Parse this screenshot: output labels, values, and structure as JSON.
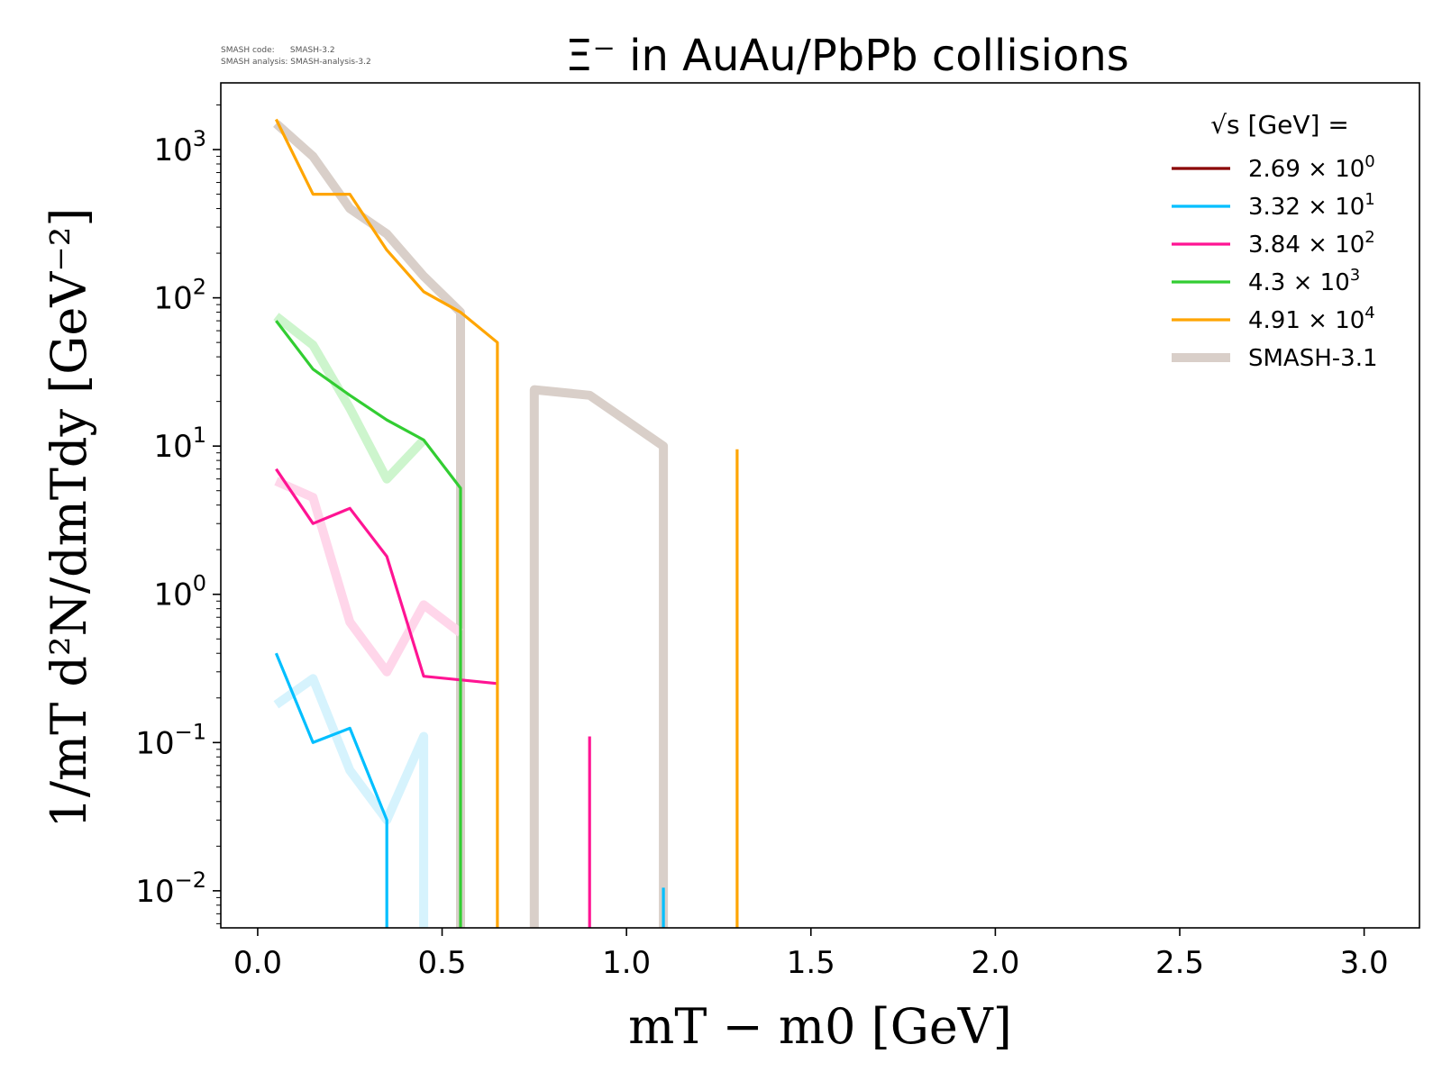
{
  "meta": {
    "code_label": "SMASH code:      SMASH-3.2",
    "analysis_label": "SMASH analysis: SMASH-analysis-3.2"
  },
  "chart_data": {
    "type": "line",
    "title": "Ξ⁻ in AuAu/PbPb collisions",
    "xlabel": "mT − m0 [GeV]",
    "ylabel": "1/mT d²N/dmTdy [GeV⁻²]",
    "xlim": [
      -0.1,
      3.15
    ],
    "ylim_log10": [
      -2.25,
      3.45
    ],
    "yscale": "log",
    "x_ticks": [
      "0.0",
      "0.5",
      "1.0",
      "1.5",
      "2.0",
      "2.5",
      "3.0"
    ],
    "y_ticks": [
      {
        "base": "10",
        "exp": "3"
      },
      {
        "base": "10",
        "exp": "2"
      },
      {
        "base": "10",
        "exp": "1"
      },
      {
        "base": "10",
        "exp": "0"
      },
      {
        "base": "10",
        "exp": "−1"
      },
      {
        "base": "10",
        "exp": "−2"
      }
    ],
    "grid": false,
    "legend": {
      "placement": "top-right",
      "title": "√s  [GeV] =",
      "entries": [
        {
          "mantissa": "2.69",
          "exp": "0",
          "color": "#8b0000"
        },
        {
          "mantissa": "3.32",
          "exp": "1",
          "color": "#00bfff"
        },
        {
          "mantissa": "3.84",
          "exp": "2",
          "color": "#ff1493"
        },
        {
          "mantissa": "4.3",
          "exp": "3",
          "color": "#32cd32"
        },
        {
          "mantissa": "4.91",
          "exp": "4",
          "color": "#ffa500"
        }
      ],
      "reference_label": "SMASH-3.1",
      "reference_color": "#d9cfc9"
    },
    "series": [
      {
        "name": "3.32 × 10^1",
        "color": "#00bfff",
        "reference": false,
        "x": [
          0.05,
          0.15,
          0.25,
          0.35,
          0.35
        ],
        "y": [
          0.4,
          0.1,
          0.125,
          0.03,
          0.0001
        ]
      },
      {
        "name": "3.84 × 10^2",
        "color": "#ff1493",
        "reference": false,
        "x": [
          0.05,
          0.15,
          0.25,
          0.35,
          0.45,
          0.65
        ],
        "y": [
          7,
          3.0,
          3.8,
          1.8,
          0.28,
          0.25
        ]
      },
      {
        "name": "3.84 × 10^2",
        "color": "#ff1493",
        "reference": false,
        "x": [
          0.9,
          0.9
        ],
        "y": [
          0.0001,
          0.11
        ]
      },
      {
        "name": "4.3 × 10^3",
        "color": "#32cd32",
        "reference": false,
        "x": [
          0.05,
          0.15,
          0.25,
          0.35,
          0.45,
          0.55,
          0.55
        ],
        "y": [
          70,
          33,
          22,
          15,
          11,
          5.2,
          0.0001
        ]
      },
      {
        "name": "4.91 × 10^4",
        "color": "#ffa500",
        "reference": false,
        "x": [
          0.05,
          0.15,
          0.25,
          0.35,
          0.45,
          0.55,
          0.65,
          0.65
        ],
        "y": [
          1600,
          500,
          500,
          210,
          110,
          80,
          50,
          0.0001
        ]
      },
      {
        "name": "4.91 × 10^4",
        "color": "#ffa500",
        "reference": false,
        "x": [
          1.3,
          1.3
        ],
        "y": [
          0.0001,
          9.5
        ]
      },
      {
        "name": "3.32 × 10^1",
        "color": "#00bfff",
        "reference": false,
        "x": [
          1.1,
          1.1
        ],
        "y": [
          0.0001,
          0.0105
        ]
      },
      {
        "name": "SMASH-3.1",
        "color": "#d9cfc9",
        "reference": true,
        "x": [
          0.05,
          0.15,
          0.25,
          0.35,
          0.45,
          0.55,
          0.55
        ],
        "y": [
          1500,
          900,
          400,
          270,
          140,
          80,
          0.0001
        ]
      },
      {
        "name": "SMASH-3.1",
        "color": "#d9cfc9",
        "reference": true,
        "x": [
          0.75,
          0.75,
          0.9,
          1.1,
          1.1
        ],
        "y": [
          0.0001,
          24,
          22,
          10,
          0.0001
        ]
      },
      {
        "name": "SMASH-3.1",
        "color": "#cdf5cd",
        "reference": true,
        "x": [
          0.05,
          0.15,
          0.25,
          0.35,
          0.45
        ],
        "y": [
          75,
          48,
          18,
          6,
          11
        ]
      },
      {
        "name": "SMASH-3.1",
        "color": "#ffd6ea",
        "reference": true,
        "x": [
          0.05,
          0.15,
          0.25,
          0.35,
          0.45,
          0.55
        ],
        "y": [
          5.8,
          4.5,
          0.65,
          0.3,
          0.85,
          0.55
        ]
      },
      {
        "name": "SMASH-3.1",
        "color": "#d6f3fd",
        "reference": true,
        "x": [
          0.05,
          0.15,
          0.25,
          0.35,
          0.45,
          0.45
        ],
        "y": [
          0.18,
          0.27,
          0.065,
          0.03,
          0.11,
          0.0001
        ]
      }
    ]
  }
}
